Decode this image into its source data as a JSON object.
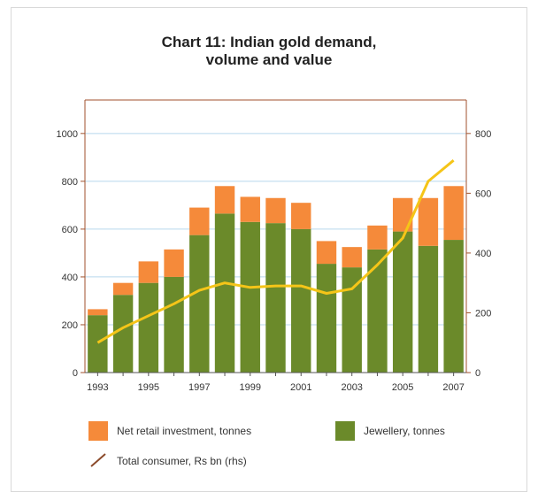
{
  "chart_data": {
    "type": "bar",
    "title_line1": "Chart 11: Indian gold demand,",
    "title_line2": "volume and value",
    "categories": [
      "1993",
      "1994",
      "1995",
      "1996",
      "1997",
      "1998",
      "1999",
      "2000",
      "2001",
      "2002",
      "2003",
      "2004",
      "2005",
      "2006",
      "2007"
    ],
    "x_tick_labels": [
      "1993",
      "1995",
      "1997",
      "1999",
      "2001",
      "2003",
      "2005",
      "2007"
    ],
    "stacked": true,
    "series": [
      {
        "name": "Jewellery, tonnes",
        "color": "#6b8a2a",
        "axis": "left",
        "values": [
          240,
          325,
          375,
          400,
          575,
          665,
          630,
          625,
          600,
          455,
          440,
          515,
          590,
          530,
          555
        ]
      },
      {
        "name": "Net retail investment, tonnes",
        "color": "#f58a3a",
        "axis": "left",
        "values": [
          25,
          50,
          90,
          115,
          115,
          115,
          105,
          105,
          110,
          95,
          85,
          100,
          140,
          200,
          225
        ]
      },
      {
        "name": "Total consumer, Rs bn (rhs)",
        "color": "#f5c518",
        "type": "line",
        "axis": "right",
        "values": [
          100,
          150,
          190,
          230,
          275,
          300,
          285,
          290,
          290,
          265,
          280,
          360,
          450,
          640,
          710
        ]
      }
    ],
    "y_left": {
      "ticks": [
        0,
        200,
        400,
        600,
        800,
        1000
      ],
      "ylim": [
        0,
        1140
      ]
    },
    "y_right": {
      "ticks": [
        0,
        200,
        400,
        600,
        800
      ],
      "ylim": [
        0,
        912
      ]
    },
    "colors": {
      "axis": "#a0522d",
      "grid": "#b8d8ee"
    },
    "legend_placement": "bottom"
  }
}
